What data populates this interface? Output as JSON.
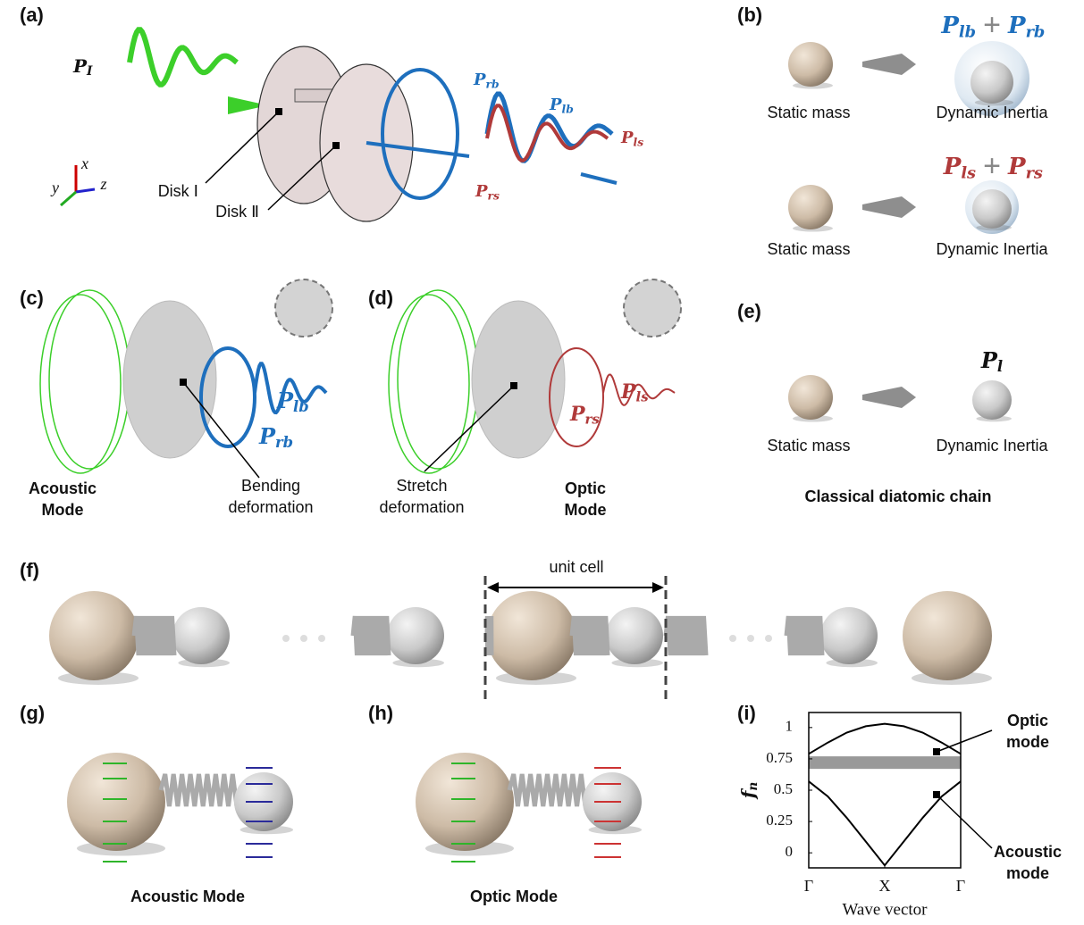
{
  "panels": {
    "a": {
      "label": "(a)",
      "incident": {
        "base": "P",
        "sub": "I"
      },
      "disk1": "Disk Ⅰ",
      "disk2": "Disk Ⅱ",
      "rb": {
        "base": "P",
        "sub": "rb"
      },
      "lb": {
        "base": "P",
        "sub": "lb"
      },
      "rs": {
        "base": "P",
        "sub": "rs"
      },
      "ls": {
        "base": "P",
        "sub": "ls"
      },
      "axes": {
        "x": "x",
        "y": "y",
        "z": "z"
      }
    },
    "b": {
      "label": "(b)",
      "top": {
        "terms": [
          {
            "base": "P",
            "sub": "lb"
          },
          {
            "base": "P",
            "sub": "rb"
          }
        ],
        "operator": "+",
        "left": "Static mass",
        "right": "Dynamic Inertia"
      },
      "bottom": {
        "terms": [
          {
            "base": "P",
            "sub": "ls"
          },
          {
            "base": "P",
            "sub": "rs"
          }
        ],
        "operator": "+",
        "left": "Static mass",
        "right": "Dynamic Inertia"
      }
    },
    "c": {
      "label": "(c)",
      "lb": {
        "base": "P",
        "sub": "lb"
      },
      "rb": {
        "base": "P",
        "sub": "rb"
      },
      "mode": [
        "Acoustic",
        "Mode"
      ],
      "deformation": [
        "Bending",
        "deformation"
      ]
    },
    "d": {
      "label": "(d)",
      "rs": {
        "base": "P",
        "sub": "rs"
      },
      "ls": {
        "base": "P",
        "sub": "ls"
      },
      "mode": [
        "Optic",
        "Mode"
      ],
      "deformation": [
        "Stretch",
        "deformation"
      ]
    },
    "e": {
      "label": "(e)",
      "symbol": {
        "base": "P",
        "sub": "l"
      },
      "left": "Static mass",
      "right": "Dynamic Inertia",
      "caption": "Classical diatomic chain"
    },
    "f": {
      "label": "(f)",
      "unit": "unit cell"
    },
    "g": {
      "label": "(g)",
      "caption": "Acoustic Mode"
    },
    "h": {
      "label": "(h)",
      "caption": "Optic Mode"
    },
    "i": {
      "label": "(i)",
      "optic": [
        "Optic",
        "mode"
      ],
      "acoustic": [
        "Acoustic",
        "mode"
      ]
    }
  },
  "chart_data": {
    "type": "line",
    "xlabel": "Wave vector",
    "ylabel": {
      "base": "f",
      "sub": "n"
    },
    "x": [
      0,
      0.25,
      0.5,
      0.75,
      1,
      1.25,
      1.5,
      1.75,
      2
    ],
    "series": [
      {
        "color": "#000000",
        "values": [
          0.57,
          0.45,
          0.28,
          0.09,
          -0.1,
          0.09,
          0.28,
          0.45,
          0.57
        ]
      },
      {
        "color": "#000000",
        "values": [
          0.79,
          0.88,
          0.96,
          1.01,
          1.03,
          1.01,
          0.96,
          0.88,
          0.79
        ]
      }
    ],
    "band": [
      0.67,
      0.77
    ],
    "band_color": "#999999",
    "xlim": [
      0,
      2
    ],
    "xticks": [
      {
        "value": 0,
        "label": "Γ"
      },
      {
        "value": 1,
        "label": "X"
      },
      {
        "value": 2,
        "label": "Γ"
      }
    ],
    "ylim": [
      -0.12,
      1.12
    ],
    "yticks": [
      0,
      0.25,
      0.5,
      0.75,
      1
    ]
  }
}
